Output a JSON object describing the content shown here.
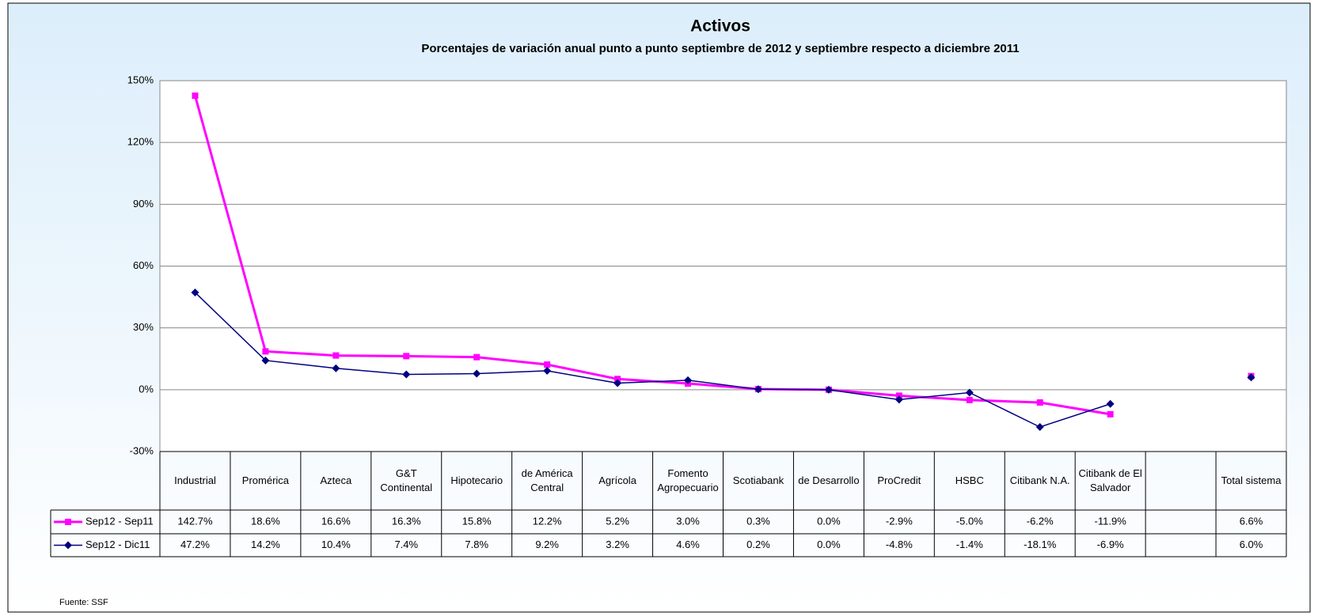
{
  "chart_data": {
    "type": "line",
    "title": "Activos",
    "subtitle": "Porcentajes de variación anual punto a punto septiembre de 2012 y septiembre respecto a diciembre 2011",
    "categories": [
      "Industrial",
      "Promérica",
      "Azteca",
      "G&T Continental",
      "Hipotecario",
      "de América Central",
      "Agrícola",
      "Fomento Agropecuario",
      "Scotiabank",
      "de Desarrollo",
      "ProCredit",
      "HSBC",
      "Citibank N.A.",
      "Citibank de El Salvador",
      null,
      "Total sistema"
    ],
    "series": [
      {
        "name": "Sep12 - Sep11",
        "color": "#ff00ff",
        "marker": "square",
        "values": [
          142.7,
          18.6,
          16.6,
          16.3,
          15.8,
          12.2,
          5.2,
          3.0,
          0.3,
          0.0,
          -2.9,
          -5.0,
          -6.2,
          -11.9,
          null,
          6.6
        ],
        "value_labels": [
          "142.7%",
          "18.6%",
          "16.6%",
          "16.3%",
          "15.8%",
          "12.2%",
          "5.2%",
          "3.0%",
          "0.3%",
          "0.0%",
          "-2.9%",
          "-5.0%",
          "-6.2%",
          "-11.9%",
          null,
          "6.6%"
        ]
      },
      {
        "name": "Sep12 - Dic11",
        "color": "#000080",
        "marker": "diamond",
        "values": [
          47.2,
          14.2,
          10.4,
          7.4,
          7.8,
          9.2,
          3.2,
          4.6,
          0.2,
          0.0,
          -4.8,
          -1.4,
          -18.1,
          -6.9,
          null,
          6.0
        ],
        "value_labels": [
          "47.2%",
          "14.2%",
          "10.4%",
          "7.4%",
          "7.8%",
          "9.2%",
          "3.2%",
          "4.6%",
          "0.2%",
          "0.0%",
          "-4.8%",
          "-1.4%",
          "-18.1%",
          "-6.9%",
          null,
          "6.0%"
        ]
      }
    ],
    "ylim": [
      -30,
      150
    ],
    "yticks": [
      {
        "value": -30,
        "label": "-30%"
      },
      {
        "value": 0,
        "label": "0%"
      },
      {
        "value": 30,
        "label": "30%"
      },
      {
        "value": 60,
        "label": "60%"
      },
      {
        "value": 90,
        "label": "90%"
      },
      {
        "value": 120,
        "label": "120%"
      },
      {
        "value": 150,
        "label": "150%"
      }
    ],
    "grid": true,
    "legend": "table",
    "source": "Fuente: SSF"
  }
}
